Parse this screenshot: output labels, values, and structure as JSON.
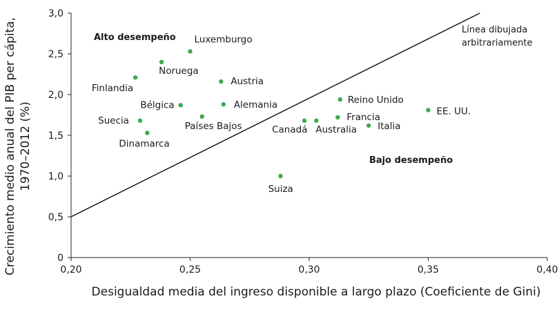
{
  "chart_data": {
    "type": "scatter",
    "xlabel": "Desigualdad media del ingreso disponible a largo plazo (Coeficiente de Gini)",
    "ylabel_lines": [
      "Crecimiento medio anual del PIB per cápita,",
      "1970–2012 (%)"
    ],
    "xlim": [
      0.2,
      0.4
    ],
    "ylim": [
      0,
      3.0
    ],
    "x_ticks": [
      "0,20",
      "0,25",
      "0,30",
      "0,35",
      "0,40"
    ],
    "y_ticks": [
      "0",
      "0,5",
      "1,0",
      "1,5",
      "2,0",
      "2,5",
      "3,0"
    ],
    "grid": false,
    "point_color": "#3aaa4a",
    "points": [
      {
        "label": "Luxemburgo",
        "x": 0.25,
        "y": 2.53
      },
      {
        "label": "Noruega",
        "x": 0.238,
        "y": 2.4
      },
      {
        "label": "Finlandia",
        "x": 0.227,
        "y": 2.21
      },
      {
        "label": "Austria",
        "x": 0.263,
        "y": 2.16
      },
      {
        "label": "Bélgica",
        "x": 0.246,
        "y": 1.87
      },
      {
        "label": "Alemania",
        "x": 0.264,
        "y": 1.88
      },
      {
        "label": "Países Bajos",
        "x": 0.255,
        "y": 1.73
      },
      {
        "label": "Suecia",
        "x": 0.229,
        "y": 1.68
      },
      {
        "label": "Dinamarca",
        "x": 0.232,
        "y": 1.53
      },
      {
        "label": "Suiza",
        "x": 0.288,
        "y": 1.0
      },
      {
        "label": "Canadá",
        "x": 0.298,
        "y": 1.68
      },
      {
        "label": "Australia",
        "x": 0.303,
        "y": 1.68
      },
      {
        "label": "Reino Unido",
        "x": 0.313,
        "y": 1.94
      },
      {
        "label": "Francia",
        "x": 0.312,
        "y": 1.72
      },
      {
        "label": "Italia",
        "x": 0.325,
        "y": 1.62
      },
      {
        "label": "EE. UU.",
        "x": 0.35,
        "y": 1.81
      }
    ],
    "reference_line": {
      "label_lines": [
        "Línea dibujada",
        "arbitrariamente"
      ],
      "from": [
        0.2,
        0.5
      ],
      "to": [
        0.3717,
        3.0
      ]
    },
    "annotations": {
      "high": "Alto desempeño",
      "low": "Bajo desempeño"
    }
  }
}
